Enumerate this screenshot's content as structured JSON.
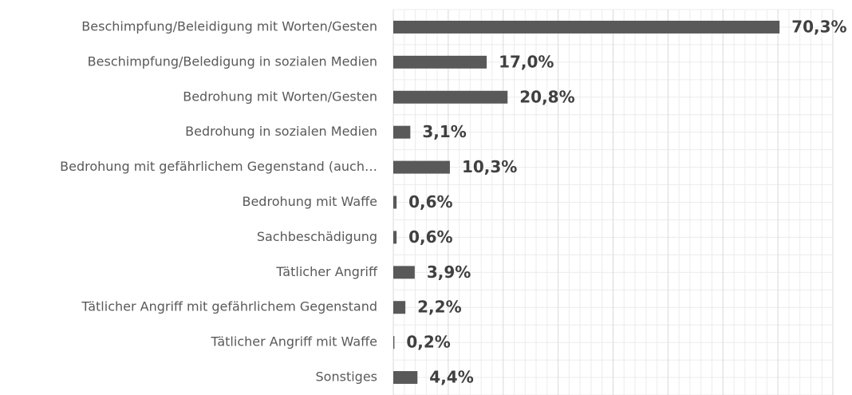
{
  "chart_data": {
    "type": "barh",
    "categories": [
      "Beschimpfung/Beleidigung mit Worten/Gesten",
      "Beschimpfung/Beledigung in sozialen Medien",
      "Bedrohung mit Worten/Gesten",
      "Bedrohung in sozialen Medien",
      "Bedrohung mit gefährlichem Gegenstand (auch…",
      "Bedrohung mit Waffe",
      "Sachbeschädigung",
      "Tätlicher Angriff",
      "Tätlicher Angriff mit gefährlichem Gegenstand",
      "Tätlicher Angriff mit Waffe",
      "Sonstiges"
    ],
    "values": [
      70.3,
      17.0,
      20.8,
      3.1,
      10.3,
      0.6,
      0.6,
      3.9,
      2.2,
      0.2,
      4.4
    ],
    "value_labels": [
      "70,3%",
      "17,0%",
      "20,8%",
      "3,1%",
      "10,3%",
      "0,6%",
      "0,6%",
      "3,9%",
      "2,2%",
      "0,2%",
      "4,4%"
    ],
    "color": "#595959",
    "xlim": [
      0,
      80
    ],
    "xticks": [
      0,
      10,
      20,
      30,
      40,
      50,
      60,
      70,
      80
    ],
    "grid": true,
    "minor_grid_divisions": 5
  }
}
